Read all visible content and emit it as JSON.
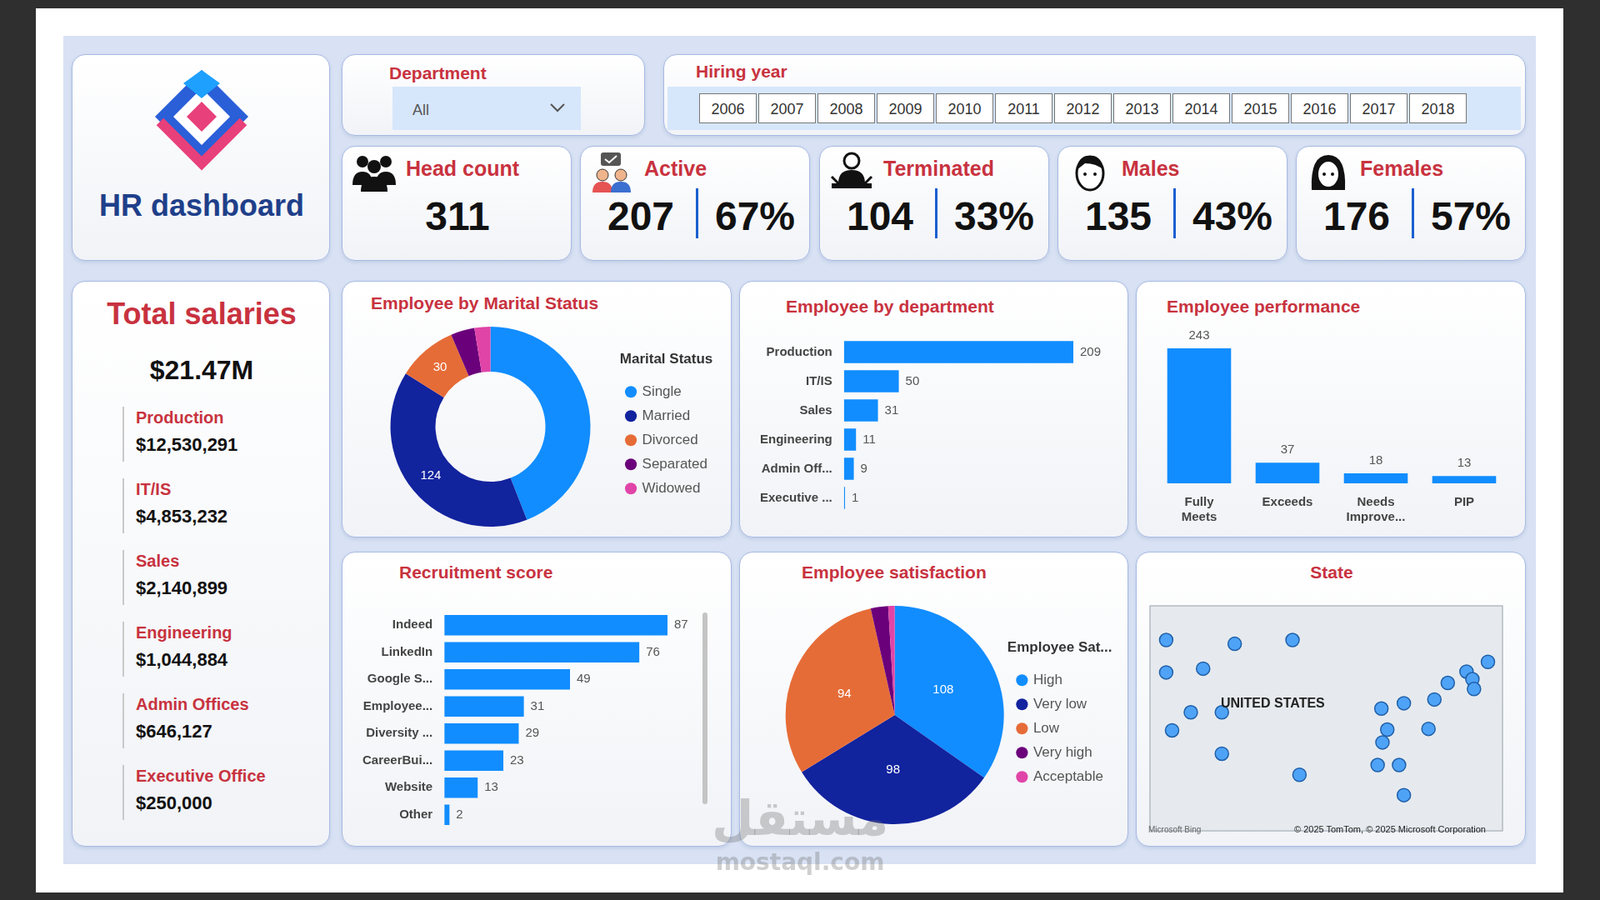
{
  "header": {
    "title": "HR dashboard"
  },
  "filters": {
    "department": {
      "label": "Department",
      "selected": "All"
    },
    "hiring_year": {
      "label": "Hiring year",
      "years": [
        2006,
        2007,
        2008,
        2009,
        2010,
        2011,
        2012,
        2013,
        2014,
        2015,
        2016,
        2017,
        2018
      ]
    }
  },
  "kpis": [
    {
      "label": "Head count",
      "value": 311
    },
    {
      "label": "Active",
      "value": 207,
      "percent": "67%"
    },
    {
      "label": "Terminated",
      "value": 104,
      "percent": "33%"
    },
    {
      "label": "Males",
      "value": 135,
      "percent": "43%"
    },
    {
      "label": "Females",
      "value": 176,
      "percent": "57%"
    }
  ],
  "salaries": {
    "title": "Total salaries",
    "total": "$21.47M",
    "items": [
      {
        "name": "Production",
        "amount": "$12,530,291"
      },
      {
        "name": "IT/IS",
        "amount": "$4,853,232"
      },
      {
        "name": "Sales",
        "amount": "$2,140,899"
      },
      {
        "name": "Engineering",
        "amount": "$1,044,884"
      },
      {
        "name": "Admin Offices",
        "amount": "$646,127"
      },
      {
        "name": "Executive Office",
        "amount": "$250,000"
      }
    ]
  },
  "chart_data": [
    {
      "type": "doughnut",
      "title": "Employee by Marital Status",
      "legend_title": "Marital Status",
      "categories": [
        "Single",
        "Married",
        "Divorced",
        "Separated",
        "Widowed"
      ],
      "values": [
        137,
        124,
        30,
        12,
        8
      ],
      "value_labels": [
        null,
        "124",
        "30",
        null,
        null
      ],
      "colors": [
        "#118dff",
        "#12239e",
        "#e66c37",
        "#6b007b",
        "#e044a7"
      ],
      "data_labels": true,
      "legend": "right"
    },
    {
      "type": "bar",
      "orientation": "horizontal",
      "title": "Employee by department",
      "categories": [
        "Production",
        "IT/IS",
        "Sales",
        "Engineering",
        "Admin Off...",
        "Executive ..."
      ],
      "values": [
        209,
        50,
        31,
        11,
        9,
        1
      ],
      "xlim": [
        0,
        209
      ],
      "color": "#118dff",
      "data_labels": true,
      "tick_labels": "y",
      "grid": false
    },
    {
      "type": "bar",
      "title": "Employee performance",
      "categories": [
        "Fully Meets",
        "Exceeds",
        "Needs Improve...",
        "PIP"
      ],
      "values": [
        243,
        37,
        18,
        13
      ],
      "ylim": [
        0,
        243
      ],
      "color": "#118dff",
      "data_labels": true,
      "tick_labels": "x",
      "grid": false
    },
    {
      "type": "bar",
      "orientation": "horizontal",
      "title": "Recruitment score",
      "categories": [
        "Indeed",
        "LinkedIn",
        "Google S...",
        "Employee...",
        "Diversity ...",
        "CareerBui...",
        "Website",
        "Other"
      ],
      "values": [
        87,
        76,
        49,
        31,
        29,
        23,
        13,
        2
      ],
      "xlim": [
        0,
        87
      ],
      "color": "#118dff",
      "data_labels": true,
      "tick_labels": "y",
      "grid": false
    },
    {
      "type": "pie",
      "title": "Employee satisfaction",
      "legend_title": "Employee Sat...",
      "categories": [
        "High",
        "Very low",
        "Low",
        "Very high",
        "Acceptable"
      ],
      "values": [
        108,
        98,
        94,
        8,
        3
      ],
      "value_labels": [
        "108",
        "98",
        "94",
        null,
        null
      ],
      "colors": [
        "#118dff",
        "#12239e",
        "#e66c37",
        "#6b007b",
        "#e044a7"
      ],
      "data_labels": true,
      "legend": "right"
    },
    {
      "type": "scatter",
      "title": "State",
      "annotations": [
        "UNITED STATES",
        "Microsoft Bing",
        "© 2025 TomTom, © 2025 Microsoft Corporation"
      ],
      "x": [
        -124.9,
        -124.9,
        -112.1,
        -101.3,
        -118.0,
        -120.3,
        -114.5,
        -123.8,
        -114.5,
        -100.0,
        -84.7,
        -80.5,
        -74.8,
        -72.3,
        -68.8,
        -67.7,
        -67.4,
        -64.8,
        -83.6,
        -84.5,
        -75.9,
        -85.4,
        -81.4,
        -80.5
      ],
      "values": [
        47.4,
        43.1,
        46.9,
        47.4,
        43.6,
        37.8,
        37.8,
        35.4,
        32.3,
        29.5,
        38.3,
        39.0,
        39.5,
        41.7,
        43.2,
        42.2,
        40.9,
        44.5,
        35.5,
        33.8,
        35.6,
        30.8,
        30.8,
        26.8
      ],
      "xlim": [
        -128,
        -62
      ],
      "ylim": [
        22,
        52
      ],
      "color": "#4fa3f7",
      "tick_labels": false,
      "grid": false
    }
  ],
  "watermark": [
    "مستقل",
    "mostaql.com"
  ]
}
